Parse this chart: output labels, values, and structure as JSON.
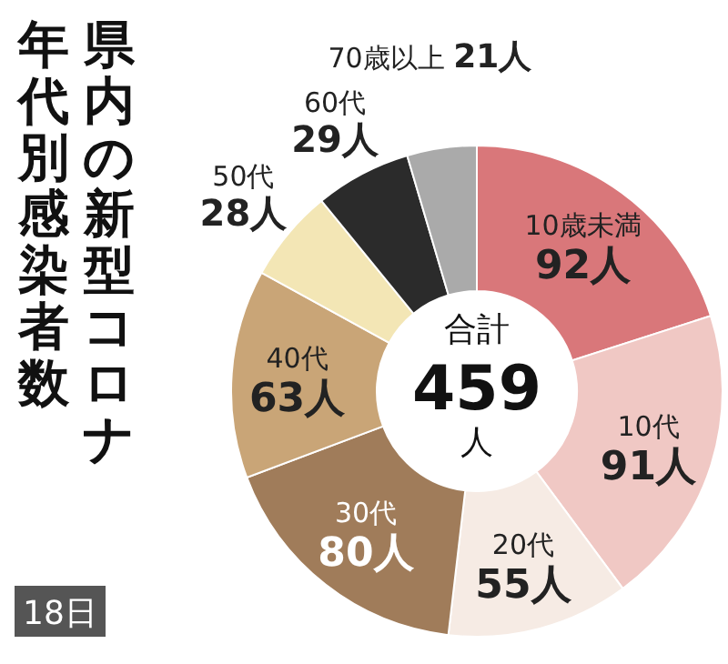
{
  "chart_data": {
    "type": "donut",
    "title": "県内の新型コロナ",
    "subtitle": "年代別感染者数",
    "categories": [
      "10歳未満",
      "10代",
      "20代",
      "30代",
      "40代",
      "50代",
      "60代",
      "70歳以上"
    ],
    "values": [
      92,
      91,
      55,
      80,
      63,
      28,
      29,
      21
    ],
    "value_labels": [
      "92人",
      "91人",
      "55人",
      "80人",
      "63人",
      "28人",
      "29人",
      "21人"
    ],
    "colors": [
      "#d9777a",
      "#f0c8c4",
      "#f6ebe4",
      "#a07c5a",
      "#c9a577",
      "#f3e6b5",
      "#2b2b2b",
      "#aaaaaa"
    ],
    "annotations": [
      "合計\n459\n人",
      "18日"
    ]
  }
}
